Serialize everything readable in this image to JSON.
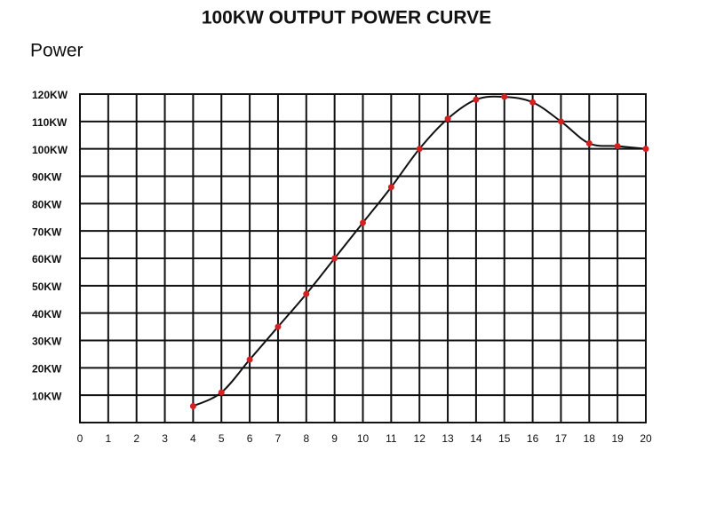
{
  "chart_data": {
    "type": "line",
    "title": "100KW OUTPUT POWER CURVE",
    "y_label": "Power",
    "x": [
      4,
      5,
      6,
      7,
      8,
      9,
      10,
      11,
      12,
      13,
      14,
      15,
      16,
      17,
      18,
      19,
      20
    ],
    "series": [
      {
        "color": "#d42020",
        "values": [
          6,
          11,
          23,
          35,
          47,
          60,
          73,
          86,
          100,
          111,
          118,
          119,
          117,
          110,
          102,
          101,
          100
        ]
      }
    ],
    "xlim": [
      0,
      20
    ],
    "xticks": [
      0,
      1,
      2,
      3,
      4,
      5,
      6,
      7,
      8,
      9,
      10,
      11,
      12,
      13,
      14,
      15,
      16,
      17,
      18,
      19,
      20
    ],
    "ylim": [
      0,
      120
    ],
    "yticks": [
      {
        "value": 10,
        "label": "10KW"
      },
      {
        "value": 20,
        "label": "20KW"
      },
      {
        "value": 30,
        "label": "30KW"
      },
      {
        "value": 40,
        "label": "40KW"
      },
      {
        "value": 50,
        "label": "50KW"
      },
      {
        "value": 60,
        "label": "60KW"
      },
      {
        "value": 70,
        "label": "70KW"
      },
      {
        "value": 80,
        "label": "80KW"
      },
      {
        "value": 90,
        "label": "90KW"
      },
      {
        "value": 100,
        "label": "100KW"
      },
      {
        "value": 110,
        "label": "110KW"
      },
      {
        "value": 120,
        "label": "120KW"
      }
    ],
    "grid": true
  }
}
